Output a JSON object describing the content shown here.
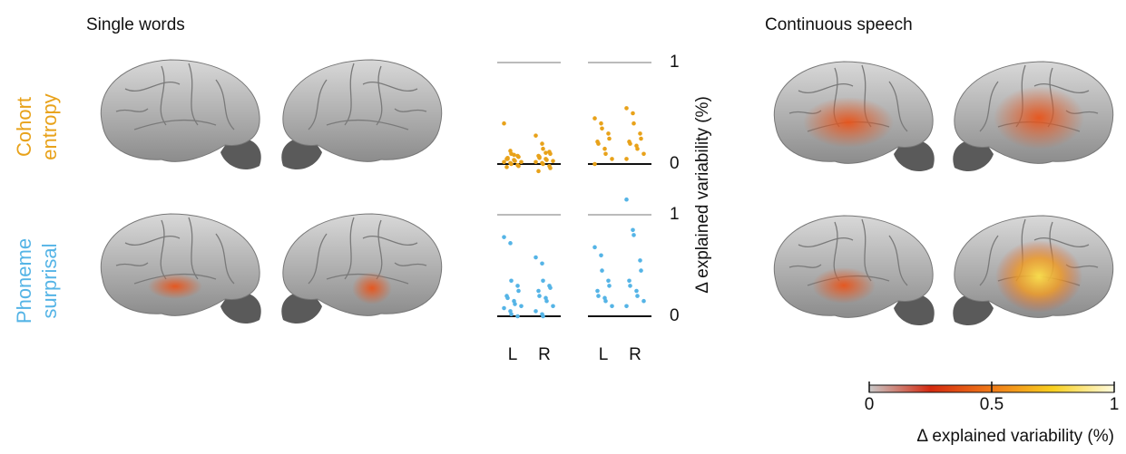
{
  "headings": {
    "left": "Single words",
    "right": "Continuous speech"
  },
  "row_labels": [
    {
      "lines": [
        "Cohort",
        "entropy"
      ],
      "color": "#e8a21a"
    },
    {
      "lines": [
        "Phoneme",
        "surprisal"
      ],
      "color": "#55b4e6"
    }
  ],
  "y_axis_label": "Δ explained variability (%)",
  "chart_data": [
    {
      "type": "strip",
      "color": "#e8a21a",
      "ylim": [
        0,
        1
      ],
      "values": [
        [
          0.4,
          0.13,
          0.1,
          0.08,
          0.07,
          0.05,
          0.05,
          0.04,
          0.03,
          0.02,
          0.02,
          0.01,
          0.0,
          -0.01,
          -0.02,
          -0.03,
          0.06,
          0.09
        ],
        [
          0.28,
          0.2,
          0.15,
          0.12,
          0.1,
          0.08,
          0.07,
          0.05,
          0.04,
          0.03,
          0.02,
          0.01,
          0.0,
          -0.02,
          -0.04,
          -0.07,
          0.06,
          0.11
        ]
      ]
    },
    {
      "type": "strip",
      "color": "#e8a21a",
      "ylim": [
        0,
        1
      ],
      "yticks": [
        0,
        1
      ],
      "values": [
        [
          0.45,
          0.4,
          0.35,
          0.3,
          0.25,
          0.22,
          0.2,
          0.15,
          0.1,
          0.05,
          0.0
        ],
        [
          0.55,
          0.5,
          0.4,
          0.3,
          0.25,
          0.22,
          0.2,
          0.18,
          0.15,
          0.1,
          0.05
        ]
      ]
    },
    {
      "type": "strip",
      "color": "#55b4e6",
      "ylim": [
        0,
        1
      ],
      "categories": [
        "L",
        "R"
      ],
      "values": [
        [
          0.78,
          0.72,
          0.35,
          0.3,
          0.25,
          0.2,
          0.18,
          0.15,
          0.12,
          0.1,
          0.08,
          0.05,
          0.02,
          0.0
        ],
        [
          0.58,
          0.52,
          0.35,
          0.3,
          0.28,
          0.25,
          0.2,
          0.18,
          0.15,
          0.1,
          0.05,
          0.02,
          0.0
        ]
      ]
    },
    {
      "type": "strip",
      "color": "#55b4e6",
      "ylim": [
        0,
        1
      ],
      "yticks": [
        0,
        1
      ],
      "categories": [
        "L",
        "R"
      ],
      "values": [
        [
          0.68,
          0.6,
          0.45,
          0.35,
          0.3,
          0.25,
          0.2,
          0.18,
          0.15,
          0.1
        ],
        [
          1.15,
          0.85,
          0.8,
          0.55,
          0.45,
          0.35,
          0.3,
          0.25,
          0.2,
          0.15,
          0.1
        ]
      ]
    }
  ],
  "colorbar": {
    "lim": [
      0,
      1
    ],
    "ticks": [
      0,
      0.5,
      1
    ],
    "label": "Δ explained variability (%)",
    "colors": [
      "#c8c8c8",
      "#d42a10",
      "#f07a18",
      "#f8d020",
      "#fffbe0"
    ]
  }
}
